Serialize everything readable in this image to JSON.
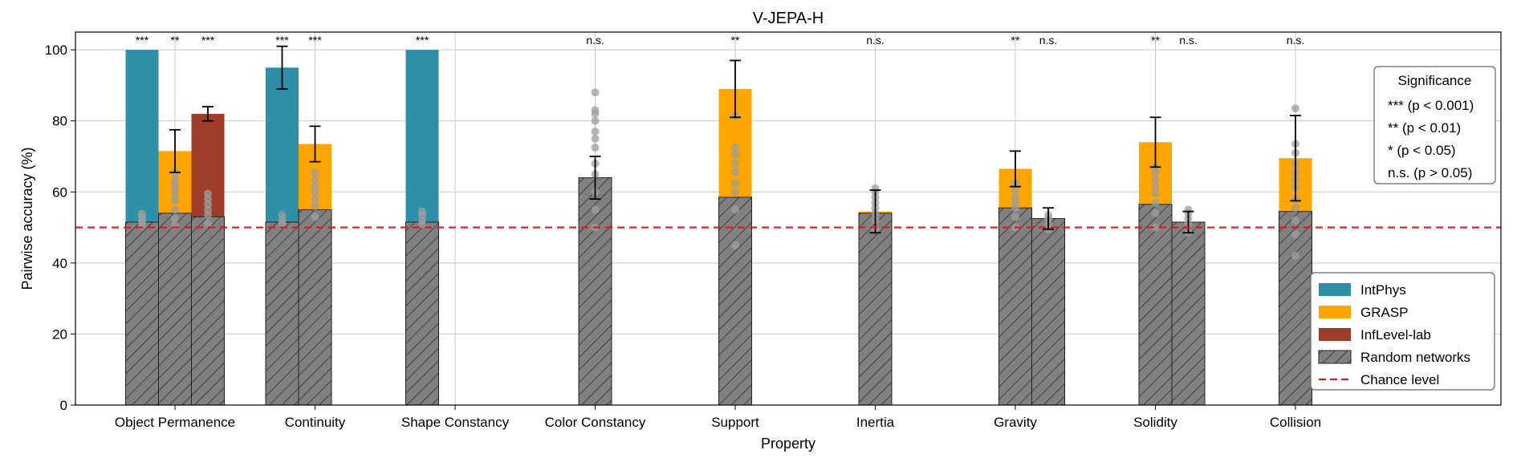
{
  "chart_data": {
    "type": "bar",
    "title": "V-JEPA-H",
    "xlabel": "Property",
    "ylabel": "Pairwise accuracy (%)",
    "ylim": [
      0,
      105
    ],
    "yticks": [
      0,
      20,
      40,
      60,
      80,
      100
    ],
    "grid": true,
    "chance_level": 50,
    "categories": [
      "Object Permanence",
      "Continuity",
      "Shape Constancy",
      "Color Constancy",
      "Support",
      "Inertia",
      "Gravity",
      "Solidity",
      "Collision"
    ],
    "series_names": [
      "IntPhys",
      "GRASP",
      "InfLevel-lab"
    ],
    "colors": {
      "IntPhys": "#2e8fa6",
      "GRASP": "#ffa500",
      "InfLevel-lab": "#9e3d2a",
      "random": "#808080",
      "chance": "#e8141c"
    },
    "bars": [
      {
        "category": "Object Permanence",
        "slot": "left",
        "series": "IntPhys",
        "value": 100.0,
        "err": 0.2,
        "random": 51.5,
        "sig": "***",
        "scatter": [
          50.5,
          51.2,
          52.0,
          53.0,
          53.8
        ]
      },
      {
        "category": "Object Permanence",
        "slot": "center",
        "series": "GRASP",
        "value": 71.5,
        "err": 6.0,
        "random": 54.0,
        "sig": "**",
        "scatter": [
          50.5,
          52.5,
          55.0,
          57.5,
          59.0,
          60.5,
          62.0,
          63.5,
          65.5
        ]
      },
      {
        "category": "Object Permanence",
        "slot": "right",
        "series": "InfLevel-lab",
        "value": 82.0,
        "err": 2.0,
        "random": 53.0,
        "sig": "***",
        "scatter": [
          51.0,
          53.5,
          55.0,
          56.5,
          58.0,
          59.5
        ]
      },
      {
        "category": "Continuity",
        "slot": "left",
        "series": "IntPhys",
        "value": 95.0,
        "err": 6.0,
        "random": 51.5,
        "sig": "***",
        "scatter": [
          51.0,
          52.0,
          53.5
        ]
      },
      {
        "category": "Continuity",
        "slot": "center",
        "series": "GRASP",
        "value": 73.5,
        "err": 5.0,
        "random": 55.0,
        "sig": "***",
        "scatter": [
          53.0,
          56.0,
          58.0,
          60.0,
          61.5,
          63.5,
          65.5
        ]
      },
      {
        "category": "Shape Constancy",
        "slot": "left",
        "series": "IntPhys",
        "value": 100.0,
        "err": 0.2,
        "random": 51.5,
        "sig": "***",
        "scatter": [
          51.0,
          52.0,
          53.5,
          54.5
        ]
      },
      {
        "category": "Color Constancy",
        "slot": "center",
        "series": "GRASP",
        "value": 64.0,
        "err": 6.0,
        "random": 64.0,
        "sig": "n.s.",
        "scatter": [
          50.0,
          55.0,
          60.0,
          65.0,
          68.0,
          72.5,
          75.0,
          77.0,
          80.0,
          82.0,
          83.0,
          88.0
        ]
      },
      {
        "category": "Support",
        "slot": "center",
        "series": "GRASP",
        "value": 89.0,
        "err": 8.0,
        "random": 58.5,
        "sig": "**",
        "scatter": [
          45.0,
          55.0,
          60.0,
          62.5,
          65.5,
          68.0,
          70.5,
          72.5,
          81.5
        ]
      },
      {
        "category": "Inertia",
        "slot": "center",
        "series": "GRASP",
        "value": 54.5,
        "err": 6.0,
        "random": 54.0,
        "sig": "n.s.",
        "scatter": [
          49.5,
          52.0,
          54.0,
          55.5,
          57.0,
          58.5,
          60.0,
          61.0
        ]
      },
      {
        "category": "Gravity",
        "slot": "center",
        "series": "GRASP",
        "value": 66.5,
        "err": 5.0,
        "random": 55.5,
        "sig": "**",
        "scatter": [
          50.0,
          53.0,
          55.5,
          57.0,
          58.5,
          60.5,
          62.5
        ]
      },
      {
        "category": "Gravity",
        "slot": "right",
        "series": "InfLevel-lab",
        "value": 52.5,
        "err": 3.0,
        "random": 52.5,
        "sig": "n.s.",
        "scatter": [
          49.5,
          51.0,
          52.5,
          53.5
        ]
      },
      {
        "category": "Solidity",
        "slot": "center",
        "series": "GRASP",
        "value": 74.0,
        "err": 7.0,
        "random": 56.5,
        "sig": "**",
        "scatter": [
          50.0,
          54.0,
          57.0,
          59.5,
          61.5,
          63.5,
          65.5,
          67.0
        ]
      },
      {
        "category": "Solidity",
        "slot": "right",
        "series": "InfLevel-lab",
        "value": 51.5,
        "err": 3.0,
        "random": 51.5,
        "sig": "n.s.",
        "scatter": [
          48.5,
          51.0,
          52.5,
          54.0,
          55.0
        ]
      },
      {
        "category": "Collision",
        "slot": "center",
        "series": "GRASP",
        "value": 69.5,
        "err": 12.0,
        "random": 54.5,
        "sig": "n.s.",
        "scatter": [
          42.0,
          48.0,
          52.0,
          55.5,
          58.0,
          61.5,
          63.5,
          65.5,
          68.0,
          71.0,
          73.5,
          83.5
        ]
      }
    ],
    "significance_box": {
      "title": "Significance",
      "entries": [
        "*** (p < 0.001)",
        "** (p < 0.01)",
        "* (p < 0.05)",
        "n.s. (p > 0.05)"
      ],
      "placement": "top-right"
    },
    "legend": {
      "placement": "lower-right",
      "entries": [
        {
          "label": "IntPhys",
          "kind": "IntPhys"
        },
        {
          "label": "GRASP",
          "kind": "GRASP"
        },
        {
          "label": "InfLevel-lab",
          "kind": "InfLevel-lab"
        },
        {
          "label": "Random networks",
          "kind": "random"
        },
        {
          "label": "Chance level",
          "kind": "chance"
        }
      ]
    }
  }
}
